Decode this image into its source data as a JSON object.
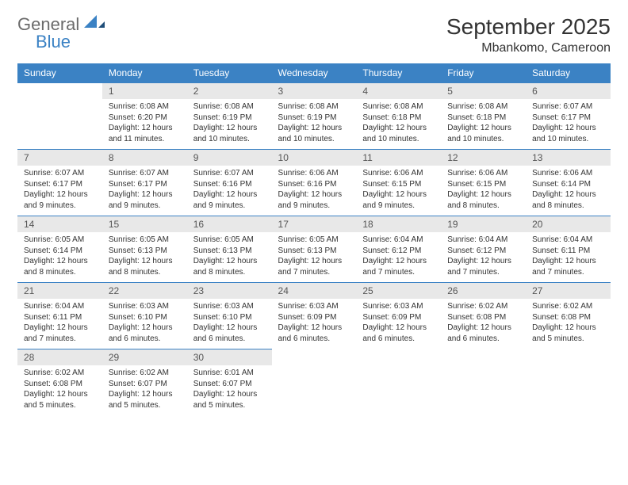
{
  "logo": {
    "text1": "General",
    "text2": "Blue"
  },
  "title": "September 2025",
  "location": "Mbankomo, Cameroon",
  "colors": {
    "header_bg": "#3b82c4",
    "header_text": "#ffffff",
    "daynum_bg": "#e8e8e8",
    "cell_border": "#3b82c4",
    "logo_gray": "#6b6b6b",
    "logo_blue": "#3b82c4"
  },
  "weekdays": [
    "Sunday",
    "Monday",
    "Tuesday",
    "Wednesday",
    "Thursday",
    "Friday",
    "Saturday"
  ],
  "weeks": [
    [
      null,
      {
        "n": "1",
        "sr": "6:08 AM",
        "ss": "6:20 PM",
        "dl": "12 hours and 11 minutes."
      },
      {
        "n": "2",
        "sr": "6:08 AM",
        "ss": "6:19 PM",
        "dl": "12 hours and 10 minutes."
      },
      {
        "n": "3",
        "sr": "6:08 AM",
        "ss": "6:19 PM",
        "dl": "12 hours and 10 minutes."
      },
      {
        "n": "4",
        "sr": "6:08 AM",
        "ss": "6:18 PM",
        "dl": "12 hours and 10 minutes."
      },
      {
        "n": "5",
        "sr": "6:08 AM",
        "ss": "6:18 PM",
        "dl": "12 hours and 10 minutes."
      },
      {
        "n": "6",
        "sr": "6:07 AM",
        "ss": "6:17 PM",
        "dl": "12 hours and 10 minutes."
      }
    ],
    [
      {
        "n": "7",
        "sr": "6:07 AM",
        "ss": "6:17 PM",
        "dl": "12 hours and 9 minutes."
      },
      {
        "n": "8",
        "sr": "6:07 AM",
        "ss": "6:17 PM",
        "dl": "12 hours and 9 minutes."
      },
      {
        "n": "9",
        "sr": "6:07 AM",
        "ss": "6:16 PM",
        "dl": "12 hours and 9 minutes."
      },
      {
        "n": "10",
        "sr": "6:06 AM",
        "ss": "6:16 PM",
        "dl": "12 hours and 9 minutes."
      },
      {
        "n": "11",
        "sr": "6:06 AM",
        "ss": "6:15 PM",
        "dl": "12 hours and 9 minutes."
      },
      {
        "n": "12",
        "sr": "6:06 AM",
        "ss": "6:15 PM",
        "dl": "12 hours and 8 minutes."
      },
      {
        "n": "13",
        "sr": "6:06 AM",
        "ss": "6:14 PM",
        "dl": "12 hours and 8 minutes."
      }
    ],
    [
      {
        "n": "14",
        "sr": "6:05 AM",
        "ss": "6:14 PM",
        "dl": "12 hours and 8 minutes."
      },
      {
        "n": "15",
        "sr": "6:05 AM",
        "ss": "6:13 PM",
        "dl": "12 hours and 8 minutes."
      },
      {
        "n": "16",
        "sr": "6:05 AM",
        "ss": "6:13 PM",
        "dl": "12 hours and 8 minutes."
      },
      {
        "n": "17",
        "sr": "6:05 AM",
        "ss": "6:13 PM",
        "dl": "12 hours and 7 minutes."
      },
      {
        "n": "18",
        "sr": "6:04 AM",
        "ss": "6:12 PM",
        "dl": "12 hours and 7 minutes."
      },
      {
        "n": "19",
        "sr": "6:04 AM",
        "ss": "6:12 PM",
        "dl": "12 hours and 7 minutes."
      },
      {
        "n": "20",
        "sr": "6:04 AM",
        "ss": "6:11 PM",
        "dl": "12 hours and 7 minutes."
      }
    ],
    [
      {
        "n": "21",
        "sr": "6:04 AM",
        "ss": "6:11 PM",
        "dl": "12 hours and 7 minutes."
      },
      {
        "n": "22",
        "sr": "6:03 AM",
        "ss": "6:10 PM",
        "dl": "12 hours and 6 minutes."
      },
      {
        "n": "23",
        "sr": "6:03 AM",
        "ss": "6:10 PM",
        "dl": "12 hours and 6 minutes."
      },
      {
        "n": "24",
        "sr": "6:03 AM",
        "ss": "6:09 PM",
        "dl": "12 hours and 6 minutes."
      },
      {
        "n": "25",
        "sr": "6:03 AM",
        "ss": "6:09 PM",
        "dl": "12 hours and 6 minutes."
      },
      {
        "n": "26",
        "sr": "6:02 AM",
        "ss": "6:08 PM",
        "dl": "12 hours and 6 minutes."
      },
      {
        "n": "27",
        "sr": "6:02 AM",
        "ss": "6:08 PM",
        "dl": "12 hours and 5 minutes."
      }
    ],
    [
      {
        "n": "28",
        "sr": "6:02 AM",
        "ss": "6:08 PM",
        "dl": "12 hours and 5 minutes."
      },
      {
        "n": "29",
        "sr": "6:02 AM",
        "ss": "6:07 PM",
        "dl": "12 hours and 5 minutes."
      },
      {
        "n": "30",
        "sr": "6:01 AM",
        "ss": "6:07 PM",
        "dl": "12 hours and 5 minutes."
      },
      null,
      null,
      null,
      null
    ]
  ],
  "labels": {
    "sunrise": "Sunrise:",
    "sunset": "Sunset:",
    "daylight": "Daylight:"
  }
}
